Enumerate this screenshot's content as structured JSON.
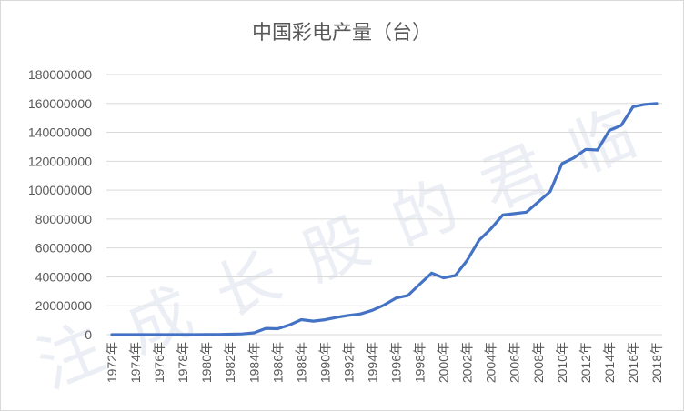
{
  "chart_data": {
    "type": "line",
    "title": "中国彩电产量（台）",
    "xlabel": "",
    "ylabel": "",
    "ylim": [
      0,
      180000000
    ],
    "yticks": [
      "0",
      "20000000",
      "40000000",
      "60000000",
      "80000000",
      "100000000",
      "120000000",
      "140000000",
      "160000000",
      "180000000"
    ],
    "grid": true,
    "line_color": "#4472c4",
    "x": [
      "1972年",
      "1973年",
      "1974年",
      "1975年",
      "1976年",
      "1977年",
      "1978年",
      "1979年",
      "1980年",
      "1981年",
      "1982年",
      "1983年",
      "1984年",
      "1985年",
      "1986年",
      "1987年",
      "1988年",
      "1989年",
      "1990年",
      "1991年",
      "1992年",
      "1993年",
      "1994年",
      "1995年",
      "1996年",
      "1997年",
      "1998年",
      "1999年",
      "2000年",
      "2001年",
      "2002年",
      "2003年",
      "2004年",
      "2005年",
      "2006年",
      "2007年",
      "2008年",
      "2009年",
      "2010年",
      "2011年",
      "2012年",
      "2013年",
      "2014年",
      "2015年",
      "2016年",
      "2017年",
      "2018年"
    ],
    "values": [
      0,
      0,
      0,
      0,
      0,
      0,
      3800,
      10000,
      32000,
      152000,
      288000,
      530000,
      1290000,
      4350000,
      4120000,
      6730000,
      10370000,
      9400000,
      10330000,
      12050000,
      13330000,
      14360000,
      16890000,
      20580000,
      25380000,
      27110000,
      34970000,
      42620000,
      39360000,
      40940000,
      51550000,
      65410000,
      73290000,
      82830000,
      83750000,
      84780000,
      91870000,
      98990000,
      118300000,
      122310000,
      128230000,
      127760000,
      141290000,
      144760000,
      157700000,
      159330000,
      160000000
    ],
    "watermark": "注成长股的君临"
  }
}
